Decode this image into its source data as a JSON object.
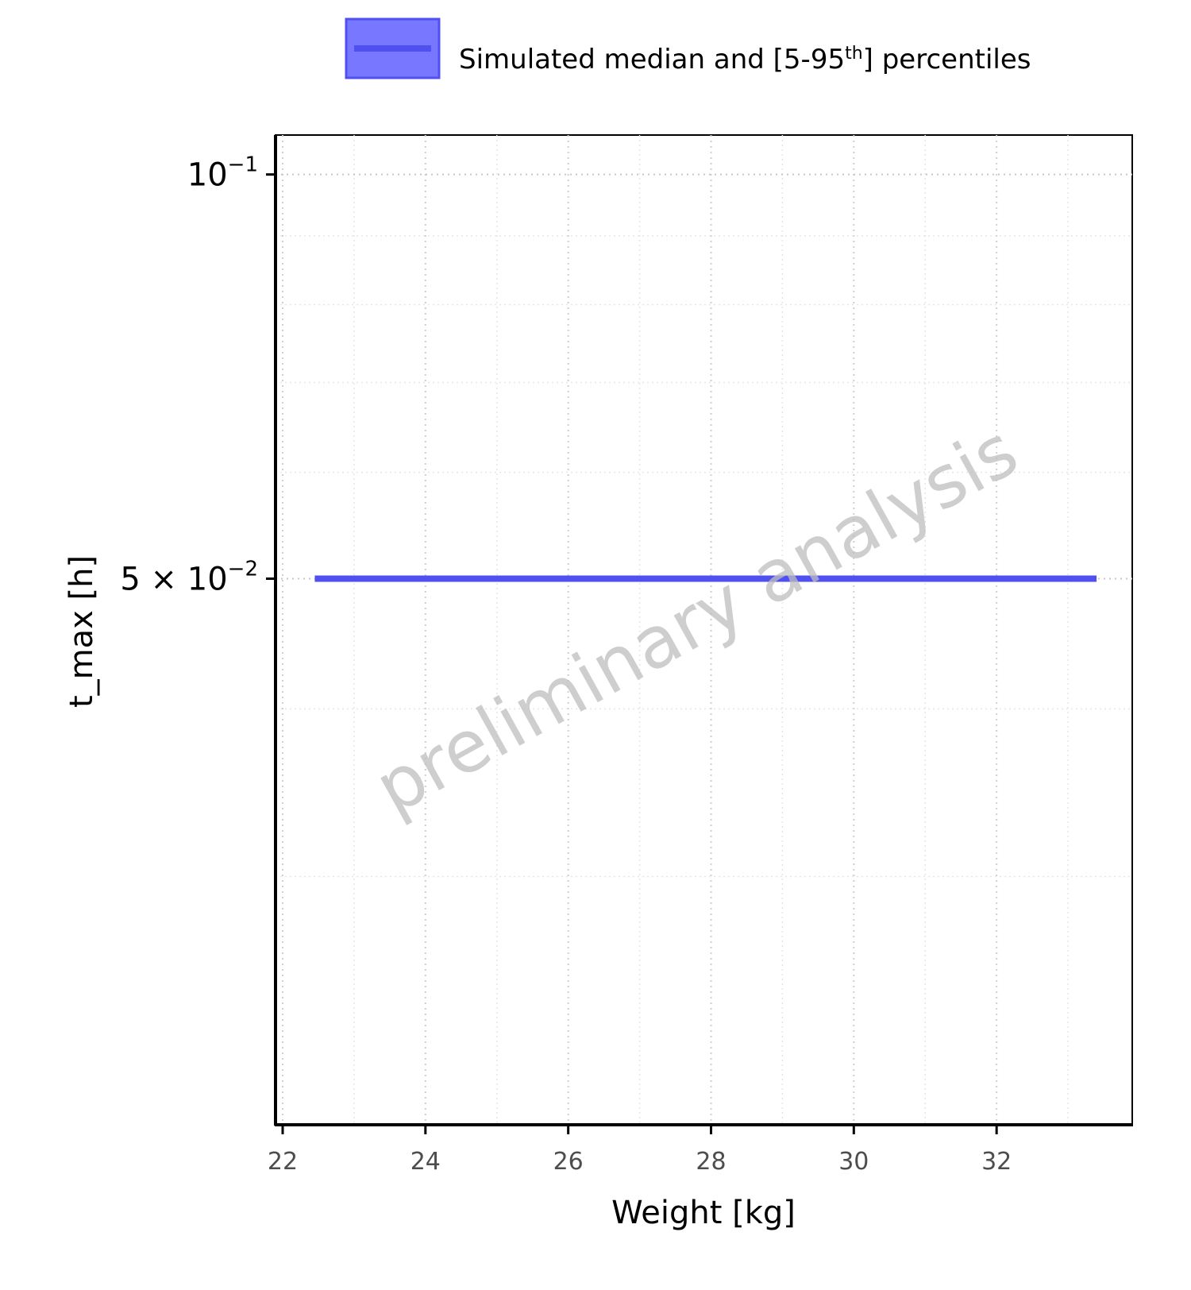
{
  "chart_data": {
    "type": "line",
    "legend": {
      "label_main": "Simulated median and [5-95",
      "label_sup": "th",
      "label_end": "] percentiles",
      "placement": "top"
    },
    "xlabel": "Weight [kg]",
    "ylabel": "t_max [h]",
    "xlim": [
      21.9,
      33.9
    ],
    "ylim": [
      0.0196,
      0.107
    ],
    "y_scale": "log",
    "x_ticks": [
      22,
      24,
      26,
      28,
      30,
      32
    ],
    "x_minor_ticks": [
      23,
      25,
      27,
      29,
      31,
      33
    ],
    "y_ticks": [
      {
        "value": 0.1,
        "mantissa": "",
        "base": "10",
        "exp": "−1"
      },
      {
        "value": 0.05,
        "mantissa": "5 × ",
        "base": "10",
        "exp": "−2"
      }
    ],
    "y_minor_gridlines": [
      0.03,
      0.04,
      0.06,
      0.07,
      0.08,
      0.09
    ],
    "grid": true,
    "series": [
      {
        "name": "Simulated median and [5-95th] percentiles",
        "color": "#5050f0",
        "band_color": "#7777ff",
        "x": [
          22.45,
          33.4
        ],
        "median": [
          0.05,
          0.05
        ],
        "p5": [
          0.05,
          0.05
        ],
        "p95": [
          0.05,
          0.05
        ]
      }
    ],
    "watermark": "preliminary analysis"
  }
}
